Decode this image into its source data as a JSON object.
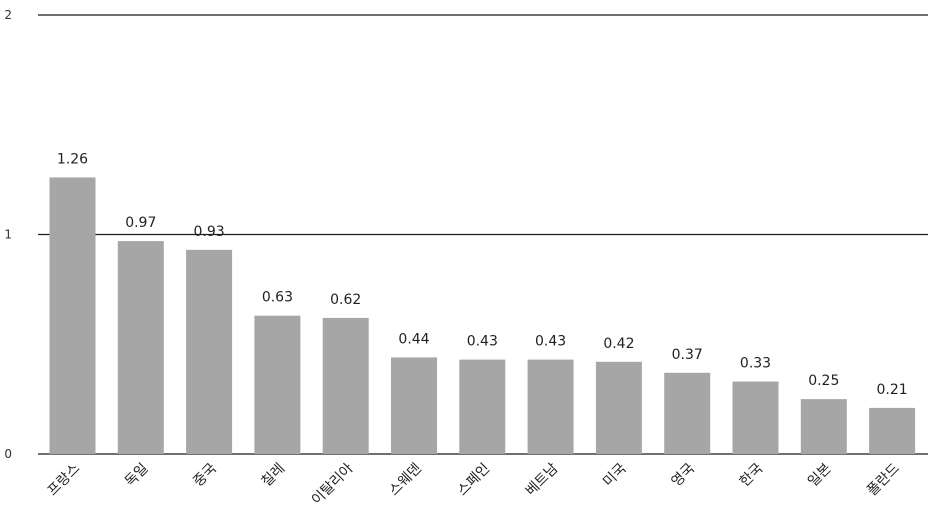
{
  "chart_data": {
    "type": "bar",
    "categories": [
      "프랑스",
      "독일",
      "중국",
      "칠레",
      "이탈리아",
      "스웨덴",
      "스페인",
      "베트남",
      "미국",
      "영국",
      "한국",
      "일본",
      "폴란드"
    ],
    "values": [
      1.26,
      0.97,
      0.93,
      0.63,
      0.62,
      0.44,
      0.43,
      0.43,
      0.42,
      0.37,
      0.33,
      0.25,
      0.21
    ],
    "value_labels": [
      "1.26",
      "0.97",
      "0.93",
      "0.63",
      "0.62",
      "0.44",
      "0.43",
      "0.43",
      "0.42",
      "0.37",
      "0.33",
      "0.25",
      "0.21"
    ],
    "yticks": [
      "0",
      "1",
      "2"
    ],
    "ylim": [
      0,
      2
    ],
    "grid": true,
    "bar_color": "#a6a6a6",
    "title": "",
    "xlabel": "",
    "ylabel": ""
  }
}
